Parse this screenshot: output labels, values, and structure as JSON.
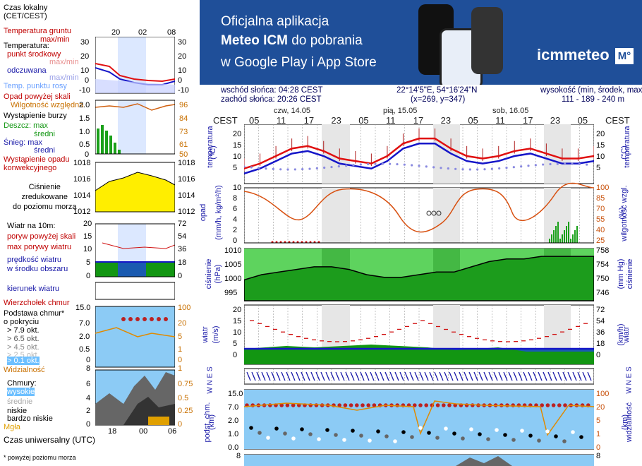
{
  "legend": {
    "time_local": [
      "Czas lokalny",
      "(CET/CEST)"
    ],
    "soil_temp": [
      "Temperatura gruntu",
      "max/min"
    ],
    "temperature": "Temperatura:",
    "mid_point": "punkt środkowy",
    "max_min": "max/min",
    "feels_like": "odczuwana",
    "max_min2": "max/min",
    "dew_point": "Temp. punktu rosy",
    "precip_above": "Opad powyżej skali",
    "humidity": "Wilgotność względna",
    "storm": "Wystąpienie burzy",
    "rain_max": "Deszcz: max",
    "rain_mean": "średni",
    "snow_max": "Śnieg:   max",
    "snow_mean": "średni",
    "precip_occurrence": [
      "Wystąpienie opadu",
      "konwekcyjnego"
    ],
    "pressure": [
      "Ciśnienie",
      "zredukowane",
      "do poziomu morza"
    ],
    "wind": "Wiatr na 10m:",
    "gust_above": "poryw powyżej skali",
    "gust_max": "max porywy wiatru",
    "wind_mean": [
      "prędkość wiatru",
      "w środku obszaru"
    ],
    "wind_dir": "kierunek wiatru",
    "cloud_top": "Wierzchołek chmur",
    "cloud_base": [
      "Podstawa chmur*",
      "o pokryciu"
    ],
    "okt": [
      "> 7.9 okt.",
      "> 6.5 okt.",
      "> 4.5 okt.",
      "> 2.5 okt.",
      "> 0.1 okt."
    ],
    "visibility": "Widzialność",
    "clouds": "Chmury:",
    "high": "wysokie",
    "mid": "średnie",
    "low": "niskie",
    "very_low": "bardzo niskie",
    "fog": "Mgła",
    "utc": "Czas uniwersalny (UTC)",
    "footnote": "* powyżej poziomu morza",
    "top_hours": [
      "20",
      "02",
      "08"
    ],
    "bottom_hours": [
      "18",
      "00",
      "06"
    ]
  },
  "banner": {
    "line1": "Oficjalna aplikacja",
    "line2_bold": "Meteo ICM",
    "line2_rest": " do pobrania",
    "line3": "w Google Play i App Store",
    "logo": "icmmeteo",
    "logo_badge": "M°"
  },
  "header": {
    "sunrise": "wschód słońca: 04:28 CEST",
    "sunset": "zachód słońca: 20:26 CEST",
    "coords": "22°14'5\"E, 54°16'24\"N",
    "grid": "(x=269,  y=347)",
    "height_label": "wysokość (min, środek, max)",
    "height_values": "111 - 189 - 240 m"
  },
  "timeline": {
    "tz": "CEST",
    "days": [
      "czw, 14.05",
      "pią, 15.05",
      "sob, 16.05"
    ],
    "hours": [
      "05",
      "11",
      "17",
      "23",
      "05",
      "11",
      "17",
      "23",
      "05",
      "11",
      "17",
      "23",
      "05"
    ]
  },
  "panels": {
    "temp": {
      "label": "temperatura",
      "unit": "(°C)",
      "ticks": [
        "20",
        "15",
        "10",
        "5"
      ]
    },
    "precip": {
      "label": "opad",
      "unit": "(mm/h, kg/m²/h)",
      "ticks": [
        "10",
        "8",
        "6",
        "4",
        "2",
        "0"
      ],
      "right_label": "wilgotność wzgl.",
      "right_unit": "(%)",
      "right_ticks": [
        "100",
        "85",
        "70",
        "55",
        "40",
        "25"
      ]
    },
    "pressure": {
      "label": "ciśnienie",
      "unit": "(hPa)",
      "ticks": [
        "1010",
        "1005",
        "1000",
        "995"
      ],
      "right_label": "ciśnienie",
      "right_unit": "(mm Hg)",
      "right_ticks": [
        "758",
        "754",
        "750",
        "746"
      ]
    },
    "wind": {
      "label": "wiatr",
      "unit": "(m/s)",
      "ticks": [
        "20",
        "15",
        "10",
        "5",
        "0"
      ],
      "right_label": "wiatr",
      "right_unit": "(km/h)",
      "right_ticks": [
        "72",
        "54",
        "36",
        "18",
        "0"
      ]
    },
    "dir": {
      "label": "W N E S"
    },
    "cloud_base": {
      "label": "podst. chm.",
      "unit": "(km)",
      "ticks": [
        "15.0",
        "7.0",
        "2.0",
        "1.0",
        "0.0"
      ],
      "right_label": "widzialność",
      "right_unit": "(km)",
      "right_ticks": [
        "100",
        "20",
        "5",
        "1",
        "0"
      ]
    },
    "clouds_preview": {
      "ticks": [
        "8"
      ]
    }
  },
  "mini": {
    "temp_ticks": [
      "30",
      "20",
      "10",
      "0",
      "-10"
    ],
    "precip_ticks": [
      "2.0",
      "1.5",
      "1.0",
      "0.5",
      "0"
    ],
    "rh_ticks": [
      "96",
      "84",
      "73",
      "61",
      "50"
    ],
    "press_ticks": [
      "1018",
      "1016",
      "1014",
      "1012"
    ],
    "wind_ticks": [
      "20",
      "15",
      "10",
      "5",
      "0"
    ],
    "wind_r": [
      "72",
      "54",
      "36",
      "18",
      "0"
    ],
    "cb_ticks": [
      "15.0",
      "7.0",
      "2.0",
      "0.5",
      "0"
    ],
    "cb_r": [
      "100",
      "20",
      "5",
      "1",
      "0"
    ],
    "vis_l": "8",
    "vis_r": "1",
    "cl_ticks": [
      "6",
      "4",
      "2",
      "0"
    ],
    "cl_r": [
      "0.75",
      "0.5",
      "0.25",
      "0"
    ]
  },
  "chart_data": {
    "type": "line",
    "title": "",
    "series": [
      {
        "name": "temperatura",
        "unit": "°C",
        "values": [
          6,
          8,
          11,
          14,
          15,
          13,
          10,
          9,
          8,
          11,
          16,
          18,
          18,
          14,
          11,
          10,
          11,
          13,
          14,
          12,
          10,
          10,
          11
        ]
      },
      {
        "name": "ciśnienie",
        "unit": "hPa",
        "values": [
          1000,
          1002,
          1003,
          1004,
          1005,
          1005,
          1004,
          1002,
          1001,
          1001,
          1002,
          1003,
          1003,
          1005,
          1007,
          1008,
          1008,
          1009,
          1009,
          1009,
          1009
        ]
      }
    ]
  }
}
